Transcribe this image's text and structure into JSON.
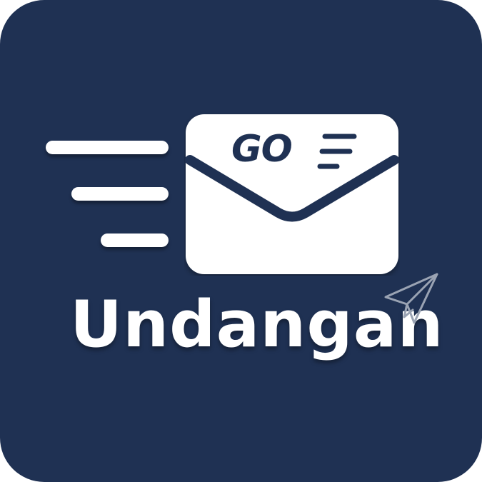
{
  "brand": {
    "name": "Undangan",
    "envelope_label": "GO",
    "colors": {
      "background": "#1f3153",
      "foreground": "#ffffff",
      "plane_outline": "#9aa3b3"
    }
  },
  "icons": {
    "envelope": "envelope-icon",
    "plane": "paper-plane-icon",
    "speed_lines": "speed-lines-icon"
  }
}
